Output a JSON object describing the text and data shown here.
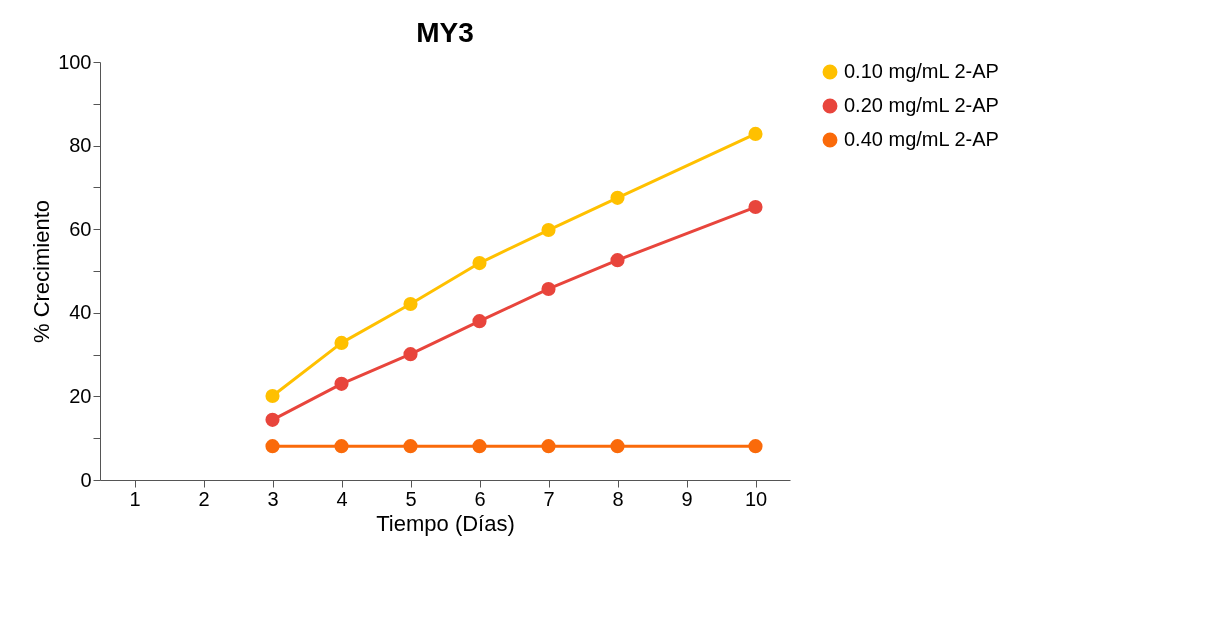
{
  "chart_data": {
    "type": "line",
    "title": "MY3",
    "xlabel": "Tiempo (Días)",
    "ylabel": "% Crecimiento",
    "categories": [
      "1",
      "2",
      "3",
      "4",
      "5",
      "6",
      "7",
      "8",
      "9",
      "10"
    ],
    "series": [
      {
        "name": "0.10 mg/mL 2-AP",
        "color": "#ffc000",
        "values": [
          null,
          null,
          20.1,
          32.8,
          42.1,
          51.9,
          59.8,
          67.5,
          null,
          82.8
        ]
      },
      {
        "name": "0.20 mg/mL 2-AP",
        "color": "#e8453c",
        "values": [
          null,
          null,
          14.4,
          23,
          30.1,
          38,
          45.7,
          52.6,
          null,
          65.3
        ]
      },
      {
        "name": "0.40 mg/mL 2-AP",
        "color": "#fa6a0a",
        "values": [
          null,
          null,
          8.1,
          8.1,
          8.1,
          8.1,
          8.1,
          8.1,
          null,
          8.1
        ]
      }
    ],
    "ylim": [
      0,
      100
    ],
    "yticks": [
      0,
      {
        "value": 10,
        "label": null
      },
      20,
      {
        "value": 30,
        "label": null
      },
      40,
      {
        "value": 50,
        "label": null
      },
      60,
      {
        "value": 70,
        "label": null
      },
      80,
      {
        "value": 90,
        "label": null
      },
      100
    ],
    "grid": false,
    "legend": "right",
    "marker": "circle",
    "line_style": "solid"
  }
}
